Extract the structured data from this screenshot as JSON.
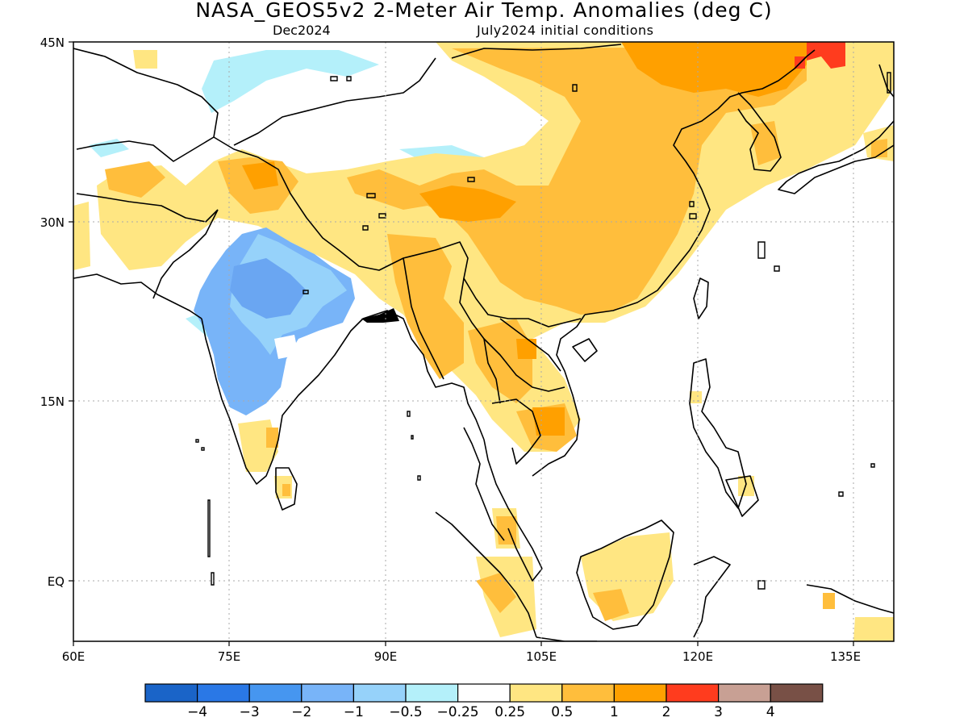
{
  "title": "NASA_GEOS5v2 2-Meter Air Temp. Anomalies (deg C)",
  "subtitle_left": "Dec2024",
  "subtitle_right": "July2024 initial conditions",
  "lat_labels": [
    "45N",
    "30N",
    "15N",
    "EQ"
  ],
  "lon_labels": [
    "60E",
    "75E",
    "90E",
    "105E",
    "120E",
    "135E"
  ],
  "colorbar": {
    "colors": [
      "#1a64c8",
      "#2a78e6",
      "#4696f0",
      "#78b4f8",
      "#96d2fa",
      "#b4f0fa",
      "#ffffff",
      "#ffe682",
      "#ffbe3c",
      "#ffa000",
      "#ff3c1e",
      "#c8a094",
      "#785046"
    ],
    "labels": [
      "-4",
      "-3",
      "-2",
      "-1",
      "-0.5",
      "-0.25",
      "0.25",
      "0.5",
      "1",
      "2",
      "3",
      "4"
    ]
  },
  "anomaly_regions": [
    {
      "level": "-1",
      "color": "#78b4f8"
    },
    {
      "level": "-0.5",
      "color": "#96d2fa"
    },
    {
      "level": "-0.25",
      "color": "#b4f0fa"
    },
    {
      "level": "0.5",
      "color": "#ffe682"
    },
    {
      "level": "1",
      "color": "#ffbe3c"
    },
    {
      "level": "2",
      "color": "#ffa000"
    },
    {
      "level": "3",
      "color": "#ff3c1e"
    }
  ]
}
